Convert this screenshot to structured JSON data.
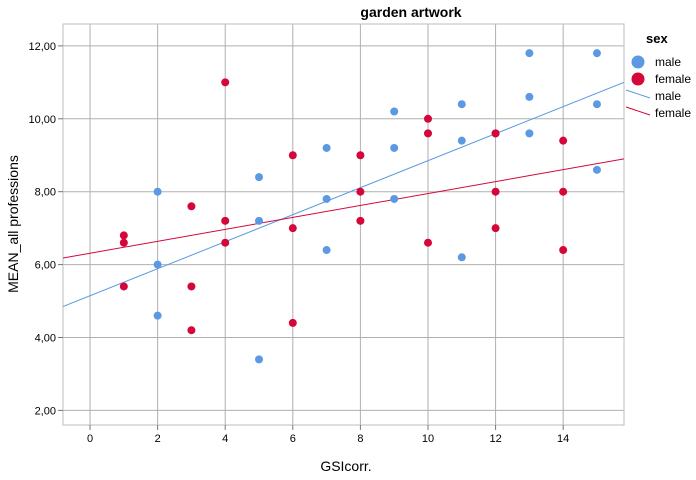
{
  "chart_data": {
    "type": "scatter",
    "title": "garden artwork",
    "xlabel": "GSIcorr.",
    "ylabel": "MEAN_all professions",
    "xlim": [
      -0.8,
      15.8
    ],
    "ylim": [
      1.6,
      12.6
    ],
    "x_ticks": [
      0,
      2,
      4,
      6,
      8,
      10,
      12,
      14
    ],
    "y_ticks": [
      2,
      4,
      6,
      8,
      10,
      12
    ],
    "y_tick_labels": [
      "2,00",
      "4,00",
      "6,00",
      "8,00",
      "10,00",
      "12,00"
    ],
    "grid": true,
    "legend_position": "right",
    "legend_title": "sex",
    "colors": {
      "male": "#5b9ae3",
      "female": "#d5073a"
    },
    "series": [
      {
        "name": "male",
        "points": [
          [
            2,
            8.0
          ],
          [
            2,
            6.0
          ],
          [
            2,
            4.6
          ],
          [
            5,
            8.4
          ],
          [
            5,
            7.2
          ],
          [
            5,
            3.4
          ],
          [
            7,
            9.2
          ],
          [
            7,
            7.8
          ],
          [
            7,
            6.4
          ],
          [
            9,
            10.2
          ],
          [
            9,
            9.2
          ],
          [
            9,
            7.8
          ],
          [
            11,
            10.4
          ],
          [
            11,
            9.4
          ],
          [
            11,
            6.2
          ],
          [
            12,
            9.6
          ],
          [
            13,
            11.8
          ],
          [
            13,
            10.6
          ],
          [
            13,
            9.6
          ],
          [
            15,
            11.8
          ],
          [
            15,
            10.4
          ],
          [
            15,
            8.6
          ]
        ]
      },
      {
        "name": "female",
        "points": [
          [
            1,
            6.8
          ],
          [
            1,
            6.6
          ],
          [
            1,
            5.4
          ],
          [
            3,
            7.6
          ],
          [
            3,
            5.4
          ],
          [
            3,
            4.2
          ],
          [
            4,
            11.0
          ],
          [
            4,
            7.2
          ],
          [
            4,
            6.6
          ],
          [
            6,
            9.0
          ],
          [
            6,
            7.0
          ],
          [
            6,
            4.4
          ],
          [
            8,
            9.0
          ],
          [
            8,
            8.0
          ],
          [
            8,
            7.2
          ],
          [
            10,
            10.0
          ],
          [
            10,
            9.6
          ],
          [
            10,
            6.6
          ],
          [
            12,
            9.6
          ],
          [
            12,
            8.0
          ],
          [
            12,
            7.0
          ],
          [
            14,
            9.4
          ],
          [
            14,
            8.0
          ],
          [
            14,
            6.4
          ]
        ]
      }
    ],
    "fit_lines": [
      {
        "name": "male",
        "y_at_xmin": 4.85,
        "y_at_xmax": 11.0
      },
      {
        "name": "female",
        "y_at_xmin": 6.18,
        "y_at_xmax": 8.9
      }
    ]
  }
}
